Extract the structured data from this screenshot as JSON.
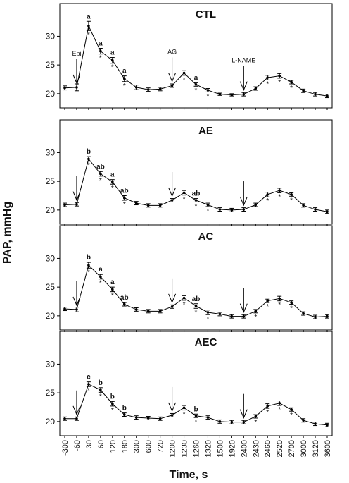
{
  "chart_data": {
    "type": "line",
    "xlabel": "Time, s",
    "ylabel": "PAP, mmHg",
    "categories": [
      "-300",
      "-60",
      "30",
      "60",
      "120",
      "180",
      "300",
      "600",
      "720",
      "1200",
      "1230",
      "1260",
      "1320",
      "1500",
      "1920",
      "2400",
      "2430",
      "2460",
      "2520",
      "2700",
      "3000",
      "3120",
      "3600"
    ],
    "ylim": [
      19,
      33
    ],
    "yticks": [
      20,
      25,
      30
    ],
    "panels": [
      {
        "title": "CTL",
        "values": [
          21.0,
          21.1,
          31.8,
          27.4,
          25.8,
          22.6,
          21.1,
          20.7,
          20.8,
          21.4,
          23.6,
          21.6,
          20.6,
          19.9,
          19.8,
          19.9,
          20.9,
          22.8,
          23.1,
          22.0,
          20.5,
          19.9,
          19.6
        ],
        "errors": [
          0.35,
          0.6,
          0.8,
          0.5,
          0.5,
          0.5,
          0.4,
          0.3,
          0.3,
          0.3,
          0.4,
          0.3,
          0.3,
          0.2,
          0.2,
          0.3,
          0.3,
          0.4,
          0.4,
          0.3,
          0.3,
          0.3,
          0.3
        ],
        "letters": {
          "30": "a",
          "60": "a",
          "120": "a",
          "180": "a",
          "1260": "a"
        },
        "stars": [
          "30",
          "60",
          "120",
          "180",
          "1230",
          "1260",
          "1320",
          "2460",
          "2520",
          "2700"
        ],
        "annotations": [
          {
            "x": "-60",
            "label": "Epi"
          },
          {
            "x": "1200",
            "label": "AG"
          },
          {
            "x": "2400",
            "label": "L-NAME"
          }
        ]
      },
      {
        "title": "AE",
        "values": [
          20.9,
          21.0,
          28.9,
          26.3,
          24.9,
          22.1,
          21.2,
          20.8,
          20.8,
          21.7,
          23.0,
          21.7,
          20.9,
          20.1,
          20.0,
          20.1,
          20.9,
          22.7,
          23.4,
          22.7,
          20.8,
          20.1,
          19.7
        ],
        "errors": [
          0.3,
          0.3,
          0.4,
          0.4,
          0.4,
          0.4,
          0.3,
          0.3,
          0.3,
          0.3,
          0.4,
          0.3,
          0.3,
          0.3,
          0.3,
          0.3,
          0.3,
          0.4,
          0.4,
          0.3,
          0.3,
          0.3,
          0.3
        ],
        "letters": {
          "30": "b",
          "60": "ab",
          "120": "a",
          "180": "ab",
          "1260": "ab"
        },
        "stars": [
          "30",
          "60",
          "120",
          "180",
          "1230",
          "1260",
          "1320",
          "2460",
          "2520",
          "2700"
        ],
        "annotations": [
          {
            "x": "-60",
            "label": ""
          },
          {
            "x": "1200",
            "label": ""
          },
          {
            "x": "2400",
            "label": ""
          }
        ]
      },
      {
        "title": "AC",
        "values": [
          21.2,
          21.1,
          28.8,
          26.8,
          24.6,
          22.0,
          21.1,
          20.8,
          20.8,
          21.6,
          23.1,
          21.7,
          20.6,
          20.3,
          19.9,
          19.9,
          20.8,
          22.6,
          23.0,
          22.3,
          20.4,
          19.8,
          19.9
        ],
        "errors": [
          0.3,
          0.4,
          0.5,
          0.4,
          0.4,
          0.3,
          0.3,
          0.3,
          0.3,
          0.3,
          0.4,
          0.4,
          0.4,
          0.3,
          0.3,
          0.3,
          0.3,
          0.3,
          0.4,
          0.3,
          0.3,
          0.3,
          0.3
        ],
        "letters": {
          "30": "b",
          "60": "a",
          "120": "a",
          "180": "ab",
          "1260": "ab"
        },
        "stars": [
          "30",
          "60",
          "120",
          "1230",
          "1260",
          "1320",
          "2430",
          "2460",
          "2520",
          "2700"
        ],
        "annotations": [
          {
            "x": "-60",
            "label": ""
          },
          {
            "x": "1200",
            "label": ""
          },
          {
            "x": "2400",
            "label": ""
          }
        ]
      },
      {
        "title": "AEC",
        "values": [
          20.5,
          20.5,
          26.5,
          25.5,
          23.1,
          21.2,
          20.7,
          20.6,
          20.5,
          21.1,
          22.4,
          21.0,
          20.7,
          20.0,
          19.9,
          19.9,
          20.9,
          22.7,
          23.2,
          22.1,
          20.2,
          19.6,
          19.4
        ],
        "errors": [
          0.3,
          0.3,
          0.4,
          0.4,
          0.4,
          0.3,
          0.3,
          0.3,
          0.3,
          0.3,
          0.4,
          0.3,
          0.3,
          0.3,
          0.3,
          0.3,
          0.3,
          0.4,
          0.4,
          0.3,
          0.3,
          0.3,
          0.3
        ],
        "letters": {
          "30": "c",
          "60": "b",
          "120": "b",
          "180": "b",
          "1260": "b"
        },
        "stars": [
          "30",
          "60",
          "120",
          "1230",
          "1260",
          "2430",
          "2460",
          "2520",
          "2700"
        ],
        "annotations": [
          {
            "x": "-60",
            "label": ""
          },
          {
            "x": "1200",
            "label": ""
          },
          {
            "x": "2400",
            "label": ""
          }
        ]
      }
    ]
  }
}
